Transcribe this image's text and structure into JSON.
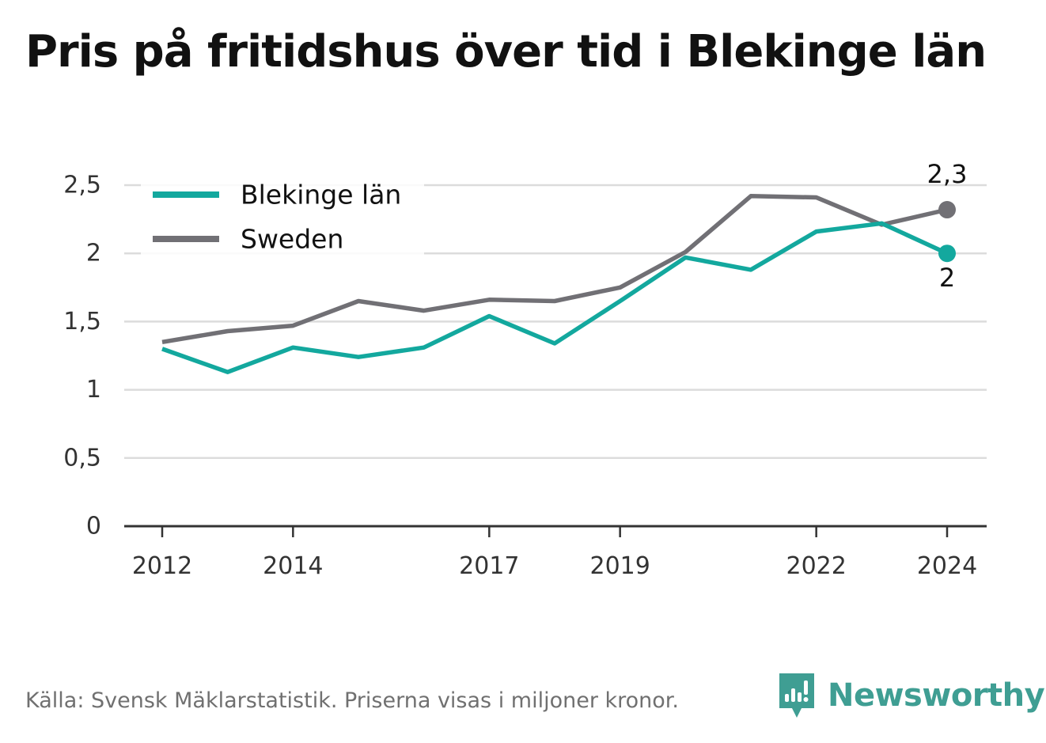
{
  "title": "Pris på fritidshus över tid i Blekinge län",
  "footer": {
    "source": "Källa: Svensk Mäklarstatistik. Priserna visas i miljoner kronor."
  },
  "brand": {
    "name": "Newsworthy",
    "icon": "newsworthy-logo-icon",
    "color": "#3f9e93"
  },
  "chart_data": {
    "type": "line",
    "title": "Pris på fritidshus över tid i Blekinge län",
    "xlabel": "",
    "ylabel": "",
    "x": [
      2012,
      2013,
      2014,
      2015,
      2016,
      2017,
      2018,
      2019,
      2020,
      2021,
      2022,
      2023,
      2024
    ],
    "x_tick_labels": [
      "2012",
      "2014",
      "2017",
      "2019",
      "2022",
      "2024"
    ],
    "y_tick_labels": [
      "0",
      "0,5",
      "1",
      "1,5",
      "2",
      "2,5"
    ],
    "ylim": [
      0,
      2.5
    ],
    "grid": true,
    "legend_position": "top-left",
    "series": [
      {
        "name": "Blekinge län",
        "color": "#13a89e",
        "values": [
          1.3,
          1.13,
          1.31,
          1.24,
          1.31,
          1.54,
          1.34,
          1.65,
          1.97,
          1.88,
          2.16,
          2.22,
          2.0
        ],
        "end_label": "2"
      },
      {
        "name": "Sweden",
        "color": "#717075",
        "values": [
          1.35,
          1.43,
          1.47,
          1.65,
          1.58,
          1.66,
          1.65,
          1.75,
          2.01,
          2.42,
          2.41,
          2.21,
          2.32
        ],
        "end_label": "2,3"
      }
    ]
  }
}
